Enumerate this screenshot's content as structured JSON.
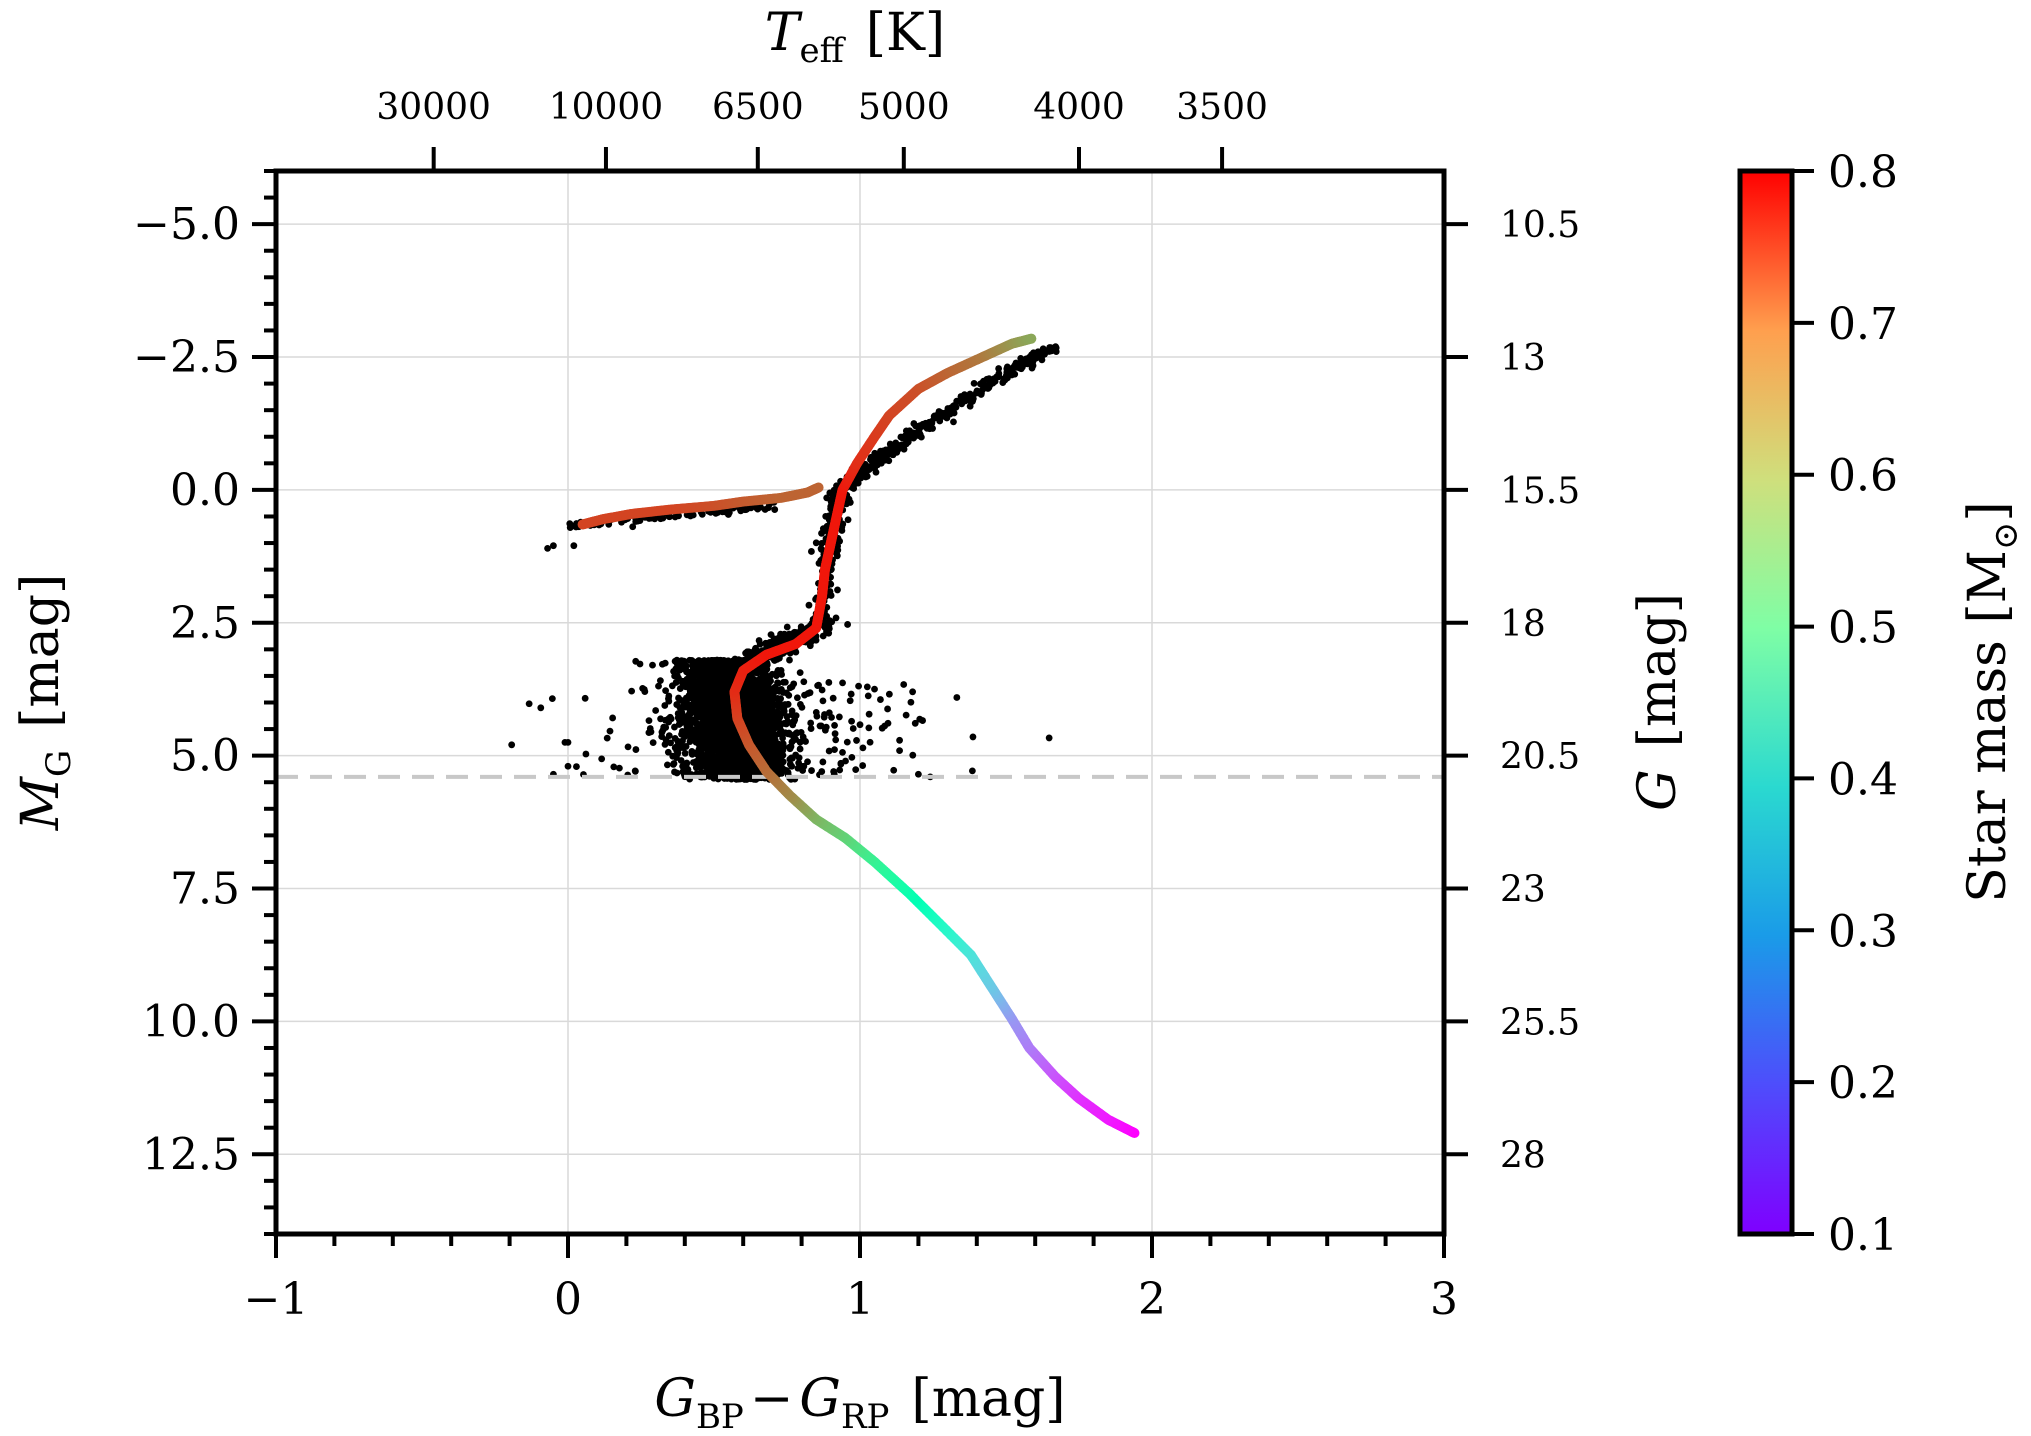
{
  "chart_data": {
    "type": "scatter",
    "title": "",
    "xlabel": {
      "main": "G",
      "sub1": "BP",
      "minus": "−",
      "main2": "G",
      "sub2": "RP",
      "unit": "[mag]"
    },
    "ylabel": {
      "main": "M",
      "sub": "G",
      "unit": "[mag]"
    },
    "y2label": {
      "main": "G",
      "unit": "[mag]"
    },
    "toplabel": {
      "main": "T",
      "sub": "eff",
      "unit": "[K]"
    },
    "colorbar_label": {
      "text": "Star mass [M",
      "symbol": "⊙",
      "close": "]"
    },
    "xlim": [
      -1,
      3
    ],
    "ylim": [
      14.0,
      -6.0
    ],
    "x_ticks": [
      -1,
      0,
      1,
      2,
      3
    ],
    "x_tick_labels": [
      "−1",
      "0",
      "1",
      "2",
      "3"
    ],
    "y_ticks": [
      -5.0,
      -2.5,
      0.0,
      2.5,
      5.0,
      7.5,
      10.0,
      12.5
    ],
    "y_tick_labels": [
      "−5.0",
      "−2.5",
      "0.0",
      "2.5",
      "5.0",
      "7.5",
      "10.0",
      "12.5"
    ],
    "y2_ticks": [
      10.5,
      13,
      15.5,
      18,
      20.5,
      23,
      25.5,
      28
    ],
    "y2_tick_labels": [
      "10.5",
      "13",
      "15.5",
      "18",
      "20.5",
      "23",
      "25.5",
      "28"
    ],
    "y2_offset": 15.5,
    "top_ticks": [
      {
        "x": -0.46,
        "label": "30000"
      },
      {
        "x": 0.13,
        "label": "10000"
      },
      {
        "x": 0.65,
        "label": "6500"
      },
      {
        "x": 1.15,
        "label": "5000"
      },
      {
        "x": 1.75,
        "label": "4000"
      },
      {
        "x": 2.24,
        "label": "3500"
      }
    ],
    "magnitude_limit": 5.4,
    "colorbar": {
      "range": [
        0.1,
        0.8
      ],
      "ticks": [
        0.1,
        0.2,
        0.3,
        0.4,
        0.5,
        0.6,
        0.7,
        0.8
      ],
      "tick_labels": [
        "0.1",
        "0.2",
        "0.3",
        "0.4",
        "0.5",
        "0.6",
        "0.7",
        "0.8"
      ],
      "colormap": "rainbow"
    },
    "series": [
      {
        "name": "isochrone-main",
        "points": [
          [
            1.94,
            12.1,
            0.1
          ],
          [
            1.85,
            11.85,
            0.12
          ],
          [
            1.75,
            11.45,
            0.14
          ],
          [
            1.67,
            11.05,
            0.17
          ],
          [
            1.58,
            10.5,
            0.21
          ],
          [
            1.52,
            9.95,
            0.24
          ],
          [
            1.45,
            9.35,
            0.3
          ],
          [
            1.38,
            8.75,
            0.34
          ],
          [
            1.28,
            8.2,
            0.4
          ],
          [
            1.17,
            7.6,
            0.46
          ],
          [
            1.05,
            7.0,
            0.52
          ],
          [
            0.95,
            6.55,
            0.58
          ],
          [
            0.85,
            6.2,
            0.62
          ],
          [
            0.76,
            5.75,
            0.67
          ],
          [
            0.68,
            5.3,
            0.7
          ],
          [
            0.62,
            4.8,
            0.72
          ],
          [
            0.58,
            4.3,
            0.74
          ],
          [
            0.57,
            3.8,
            0.76
          ],
          [
            0.6,
            3.4,
            0.77
          ],
          [
            0.68,
            3.1,
            0.78
          ],
          [
            0.78,
            2.9,
            0.78
          ],
          [
            0.85,
            2.6,
            0.78
          ],
          [
            0.87,
            2.0,
            0.78
          ],
          [
            0.88,
            1.5,
            0.78
          ],
          [
            0.9,
            1.0,
            0.78
          ],
          [
            0.92,
            0.5,
            0.78
          ],
          [
            0.94,
            0.0,
            0.78
          ],
          [
            0.99,
            -0.5,
            0.76
          ],
          [
            1.05,
            -1.0,
            0.75
          ],
          [
            1.1,
            -1.4,
            0.74
          ],
          [
            1.2,
            -1.9,
            0.73
          ],
          [
            1.3,
            -2.2,
            0.71
          ],
          [
            1.42,
            -2.5,
            0.69
          ],
          [
            1.52,
            -2.75,
            0.66
          ],
          [
            1.59,
            -2.85,
            0.64
          ]
        ]
      },
      {
        "name": "isochrone-horizontal-branch",
        "points": [
          [
            0.05,
            0.65,
            0.74
          ],
          [
            0.12,
            0.55,
            0.74
          ],
          [
            0.22,
            0.45,
            0.74
          ],
          [
            0.35,
            0.37,
            0.74
          ],
          [
            0.5,
            0.3,
            0.73
          ],
          [
            0.6,
            0.22,
            0.72
          ],
          [
            0.73,
            0.15,
            0.71
          ],
          [
            0.82,
            0.05,
            0.71
          ],
          [
            0.86,
            -0.05,
            0.71
          ]
        ]
      }
    ],
    "black_points": "simulated cluster members (black dots)"
  }
}
